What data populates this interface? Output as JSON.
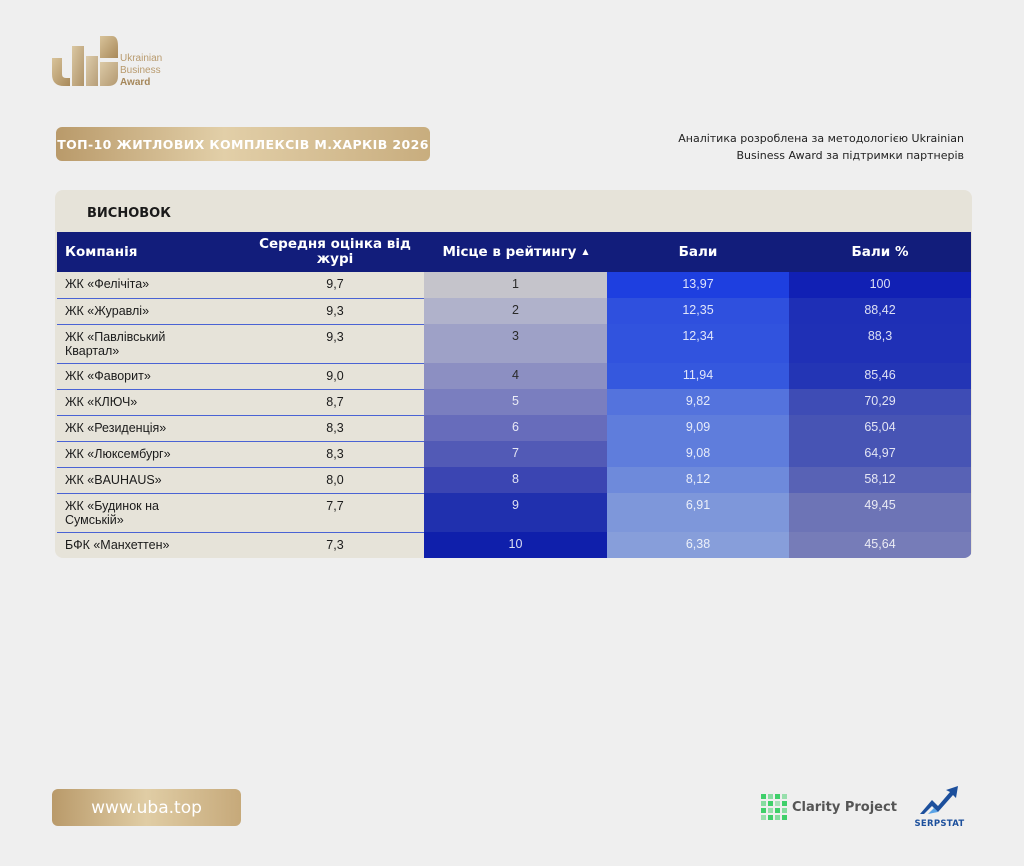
{
  "brand": {
    "logo_lines": [
      "Ukrainian",
      "Business",
      "Award"
    ],
    "gold_color": "#b89a6d"
  },
  "header": {
    "title": "ТОП-10 ЖИТЛОВИХ КОМПЛЕКСІВ М.ХАРКІВ 2026",
    "note_line1": "Аналітика розроблена за методологією Ukrainian",
    "note_line2": "Business Award за підтримки партнерів"
  },
  "section": {
    "title": "ВИСНОВОК"
  },
  "table": {
    "columns": [
      "Компанія",
      "Середня оцінка від журі",
      "Місце в рейтингу",
      "Бали",
      "Бали %"
    ],
    "sort_indicator": "▲",
    "header_color": "#121d7b",
    "rows": [
      {
        "name": "ЖК «Фелічіта»",
        "avg": "9,7",
        "place": "1",
        "points": "13,97",
        "pct": "100",
        "place_bg": "#c5c4cb",
        "pts_bg": "#1e3fe0",
        "pct_bg": "#1120b4"
      },
      {
        "name": "ЖК «Журавлі»",
        "avg": "9,3",
        "place": "2",
        "points": "12,35",
        "pct": "88,42",
        "place_bg": "#b0b2cb",
        "pts_bg": "#2f50de",
        "pct_bg": "#1e2fb6"
      },
      {
        "name": "ЖК «Павлівський Квартал»",
        "avg": "9,3",
        "place": "3",
        "points": "12,34",
        "pct": "88,3",
        "place_bg": "#9ea1c7",
        "pts_bg": "#3153de",
        "pct_bg": "#1f30b6"
      },
      {
        "name": "ЖК «Фаворит»",
        "avg": "9,0",
        "place": "4",
        "points": "11,94",
        "pct": "85,46",
        "place_bg": "#8c8fc2",
        "pts_bg": "#3558de",
        "pct_bg": "#2335b5"
      },
      {
        "name": "ЖК «КЛЮЧ»",
        "avg": "8,7",
        "place": "5",
        "points": "9,82",
        "pct": "70,29",
        "place_bg": "#7a7ebf",
        "pts_bg": "#5473dd",
        "pct_bg": "#3e4cb5"
      },
      {
        "name": "ЖК «Резиденція»",
        "avg": "8,3",
        "place": "6",
        "points": "9,09",
        "pct": "65,04",
        "place_bg": "#676cbb",
        "pts_bg": "#5f7ddc",
        "pct_bg": "#4754b4"
      },
      {
        "name": "ЖК «Люксембург»",
        "avg": "8,3",
        "place": "7",
        "points": "9,08",
        "pct": "64,97",
        "place_bg": "#525ab6",
        "pts_bg": "#5f7ddc",
        "pct_bg": "#4754b4"
      },
      {
        "name": "ЖК «BAUHAUS»",
        "avg": "8,0",
        "place": "8",
        "points": "8,12",
        "pct": "58,12",
        "place_bg": "#3b45b2",
        "pts_bg": "#6e8adb",
        "pct_bg": "#5862b5"
      },
      {
        "name": "ЖК «Будинок на Сумській»",
        "avg": "7,7",
        "place": "9",
        "points": "6,91",
        "pct": "49,45",
        "place_bg": "#2030ae",
        "pts_bg": "#7e97da",
        "pct_bg": "#6d74b6"
      },
      {
        "name": "БФК «Манхеттен»",
        "avg": "7,3",
        "place": "10",
        "points": "6,38",
        "pct": "45,64",
        "place_bg": "#0f1fab",
        "pts_bg": "#879eda",
        "pct_bg": "#767cb8"
      }
    ]
  },
  "footer": {
    "website": "www.uba.top",
    "partner1": "Clarity Project",
    "partner2": "SERPSTAT"
  }
}
